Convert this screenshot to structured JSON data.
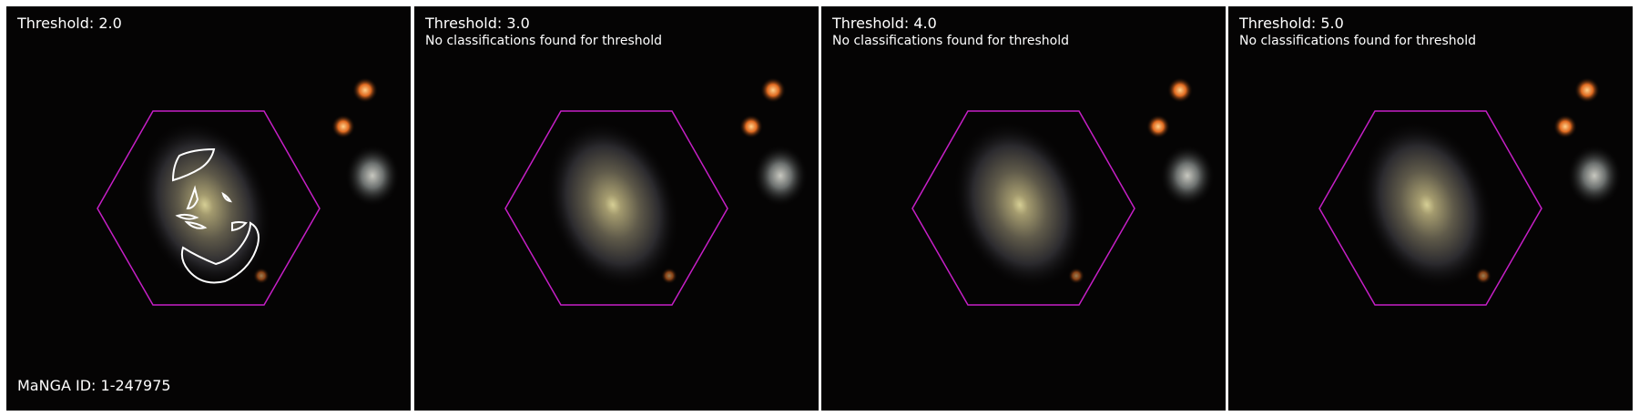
{
  "panels": [
    {
      "title": "Threshold: 2.0",
      "message": "",
      "has_contours": true
    },
    {
      "title": "Threshold: 3.0",
      "message": "No classifications found for threshold",
      "has_contours": false
    },
    {
      "title": "Threshold: 4.0",
      "message": "No classifications found for threshold",
      "has_contours": false
    },
    {
      "title": "Threshold: 5.0",
      "message": "No classifications found for threshold",
      "has_contours": false
    }
  ],
  "manga_id": "MaNGA ID: 1-247975",
  "colors": {
    "hexagon": "#c61fc6",
    "contour": "#ffffff",
    "background": "#050404"
  }
}
